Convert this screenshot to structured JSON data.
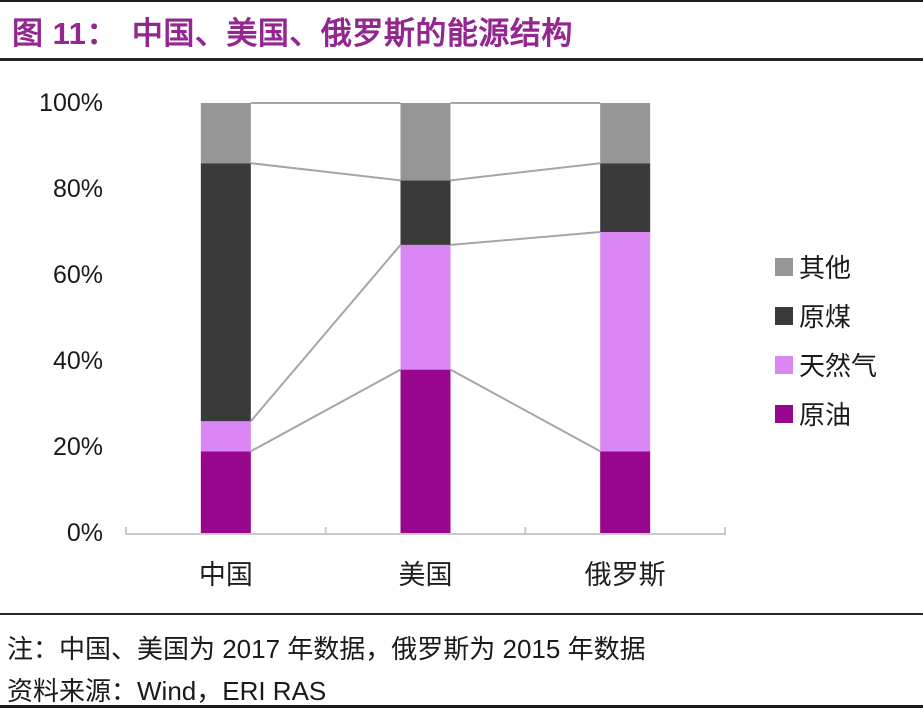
{
  "header": {
    "figure_label": "图 11：",
    "title": "中国、美国、俄罗斯的能源结构"
  },
  "chart_data": {
    "type": "bar",
    "stacked": true,
    "title": "中国、美国、俄罗斯的能源结构",
    "categories": [
      "中国",
      "美国",
      "俄罗斯"
    ],
    "series": [
      {
        "name": "原油",
        "color": "#98068E",
        "values": [
          19,
          38,
          19
        ]
      },
      {
        "name": "天然气",
        "color": "#DA87F5",
        "values": [
          7,
          29,
          51
        ]
      },
      {
        "name": "原煤",
        "color": "#3A3A3A",
        "values": [
          60,
          15,
          16
        ]
      },
      {
        "name": "其他",
        "color": "#969696",
        "values": [
          14,
          18,
          14
        ]
      }
    ],
    "unit": "percent",
    "ylim": [
      0,
      100
    ],
    "yticks": [
      0,
      20,
      40,
      60,
      80,
      100
    ],
    "ytick_suffix": "%",
    "grid": false,
    "legend_position": "right",
    "legend_order_top_to_bottom": [
      "其他",
      "原煤",
      "天然气",
      "原油"
    ],
    "series_lines": true,
    "axis_color": "#C9C9C9",
    "series_line_color": "#A6A6A6"
  },
  "notes": {
    "note": "注：中国、美国为 2017 年数据，俄罗斯为 2015 年数据",
    "source": "资料来源：Wind，ERI RAS"
  },
  "colors": {
    "title": "#93278F",
    "text": "#1A1A1A"
  }
}
